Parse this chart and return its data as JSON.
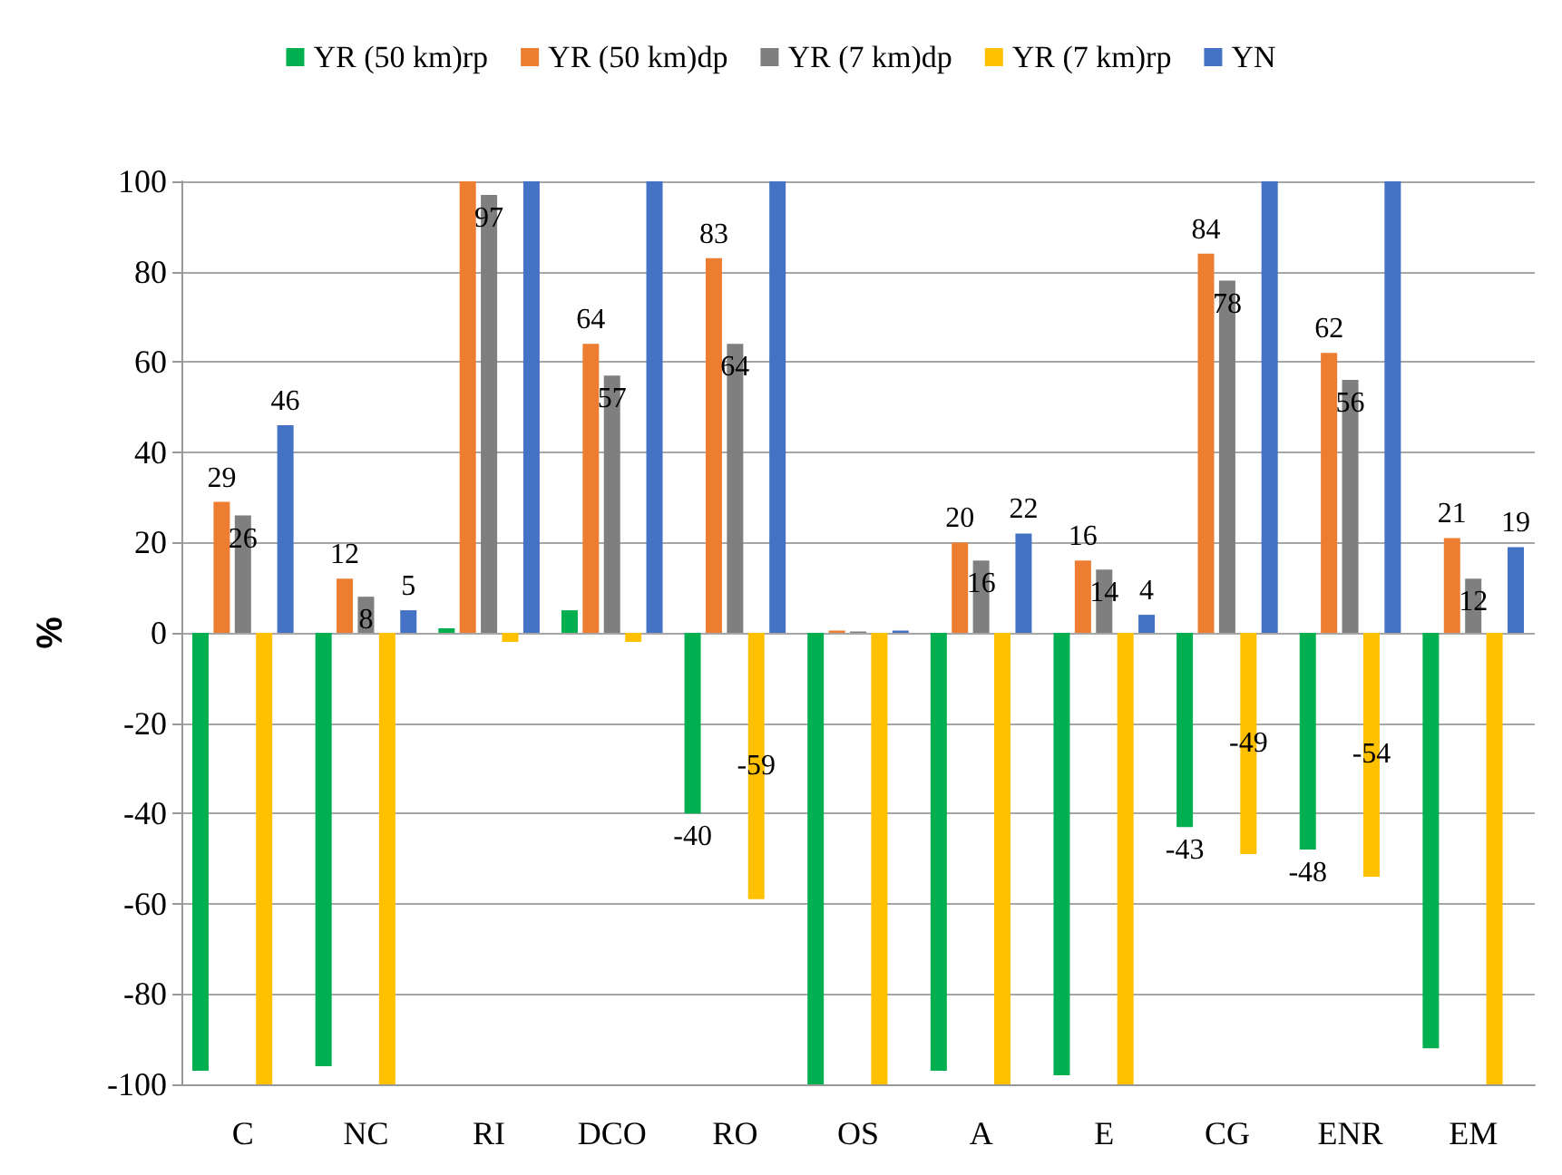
{
  "chart_data": {
    "type": "bar",
    "ylabel": "%",
    "categories": [
      "C",
      "NC",
      "RI",
      "DCO",
      "RO",
      "OS",
      "A",
      "E",
      "CG",
      "ENR",
      "EM"
    ],
    "series": [
      {
        "name": "YR (50 km)rp",
        "color": "#00b050",
        "values": [
          -97,
          -96,
          1,
          5,
          -40,
          -100,
          -97,
          -98,
          -43,
          -48,
          -92
        ],
        "value_labels": [
          null,
          null,
          null,
          null,
          "-40",
          null,
          null,
          null,
          "-43",
          "-48",
          null
        ]
      },
      {
        "name": "YR (50 km)dp",
        "color": "#ed7d31",
        "values": [
          29,
          12,
          100,
          64,
          83,
          0.5,
          20,
          16,
          84,
          62,
          21
        ],
        "value_labels": [
          "29",
          "12",
          null,
          "64",
          "83",
          null,
          "20",
          "16",
          "84",
          "62",
          "21"
        ]
      },
      {
        "name": "YR (7 km)dp",
        "color": "#7f7f7f",
        "values": [
          26,
          8,
          97,
          57,
          64,
          0.3,
          16,
          14,
          78,
          56,
          12
        ],
        "value_labels": [
          "26",
          "8",
          "97",
          "57",
          "64",
          null,
          "16",
          "14",
          "78",
          "56",
          "12"
        ]
      },
      {
        "name": "YR (7 km)rp",
        "color": "#ffc000",
        "values": [
          -100,
          -100,
          -2,
          -2,
          -59,
          -100,
          -100,
          -100,
          -49,
          -54,
          -100
        ],
        "value_labels": [
          null,
          null,
          null,
          null,
          "-59",
          null,
          null,
          null,
          "-49",
          "-54",
          null
        ]
      },
      {
        "name": "YN",
        "color": "#4472c4",
        "values": [
          46,
          5,
          100,
          100,
          100,
          0.5,
          22,
          4,
          100,
          100,
          19
        ],
        "value_labels": [
          "46",
          "5",
          null,
          null,
          null,
          null,
          "22",
          "4",
          null,
          null,
          "19"
        ]
      }
    ],
    "ylim": [
      -100,
      100
    ],
    "yticks": [
      -100,
      -80,
      -60,
      -40,
      -20,
      0,
      20,
      40,
      60,
      80,
      100
    ],
    "grid": "y",
    "legend": "top"
  }
}
